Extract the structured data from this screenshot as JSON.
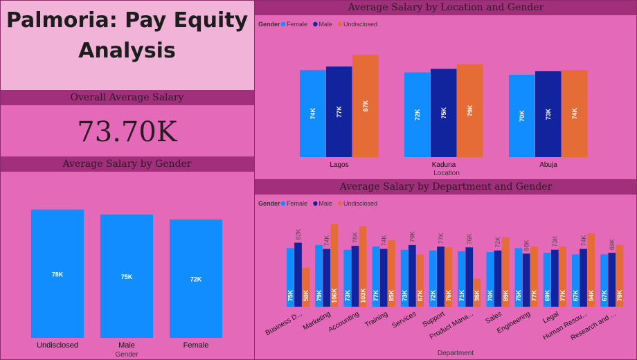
{
  "title": "Palmoria: Pay Equity Analysis",
  "kpi": {
    "header": "Overall Average Salary",
    "value": "73.70K"
  },
  "colors": {
    "female": "#118dff",
    "male": "#12239e",
    "undisclosed": "#e66c37",
    "header": "#a22f7c",
    "bg": "#e469b9"
  },
  "gender_chart": {
    "header": "Average Salary by Gender",
    "xlabel": "Gender",
    "chart_data": {
      "type": "bar",
      "categories": [
        "Undisclosed",
        "Male",
        "Female"
      ],
      "values": [
        78,
        75,
        72
      ],
      "labels": [
        "78K",
        "75K",
        "72K"
      ],
      "ylim": [
        0,
        80
      ]
    }
  },
  "location_chart": {
    "header": "Average Salary by Location and Gender",
    "legend_title": "Gender",
    "xlabel": "Location",
    "chart_data": {
      "type": "bar",
      "categories": [
        "Lagos",
        "Kaduna",
        "Abuja"
      ],
      "series": [
        {
          "name": "Female",
          "values": [
            74,
            72,
            70
          ],
          "labels": [
            "74K",
            "72K",
            "70K"
          ]
        },
        {
          "name": "Male",
          "values": [
            77,
            75,
            73
          ],
          "labels": [
            "77K",
            "75K",
            "73K"
          ]
        },
        {
          "name": "Undisclosed",
          "values": [
            87,
            79,
            74
          ],
          "labels": [
            "87K",
            "79K",
            "74K"
          ]
        }
      ],
      "ylim": [
        0,
        90
      ]
    }
  },
  "department_chart": {
    "header": "Average Salary by Department and Gender",
    "legend_title": "Gender",
    "xlabel": "Department",
    "chart_data": {
      "type": "bar",
      "categories": [
        "Business D...",
        "Marketing",
        "Accounting",
        "Training",
        "Services",
        "Support",
        "Product Mana...",
        "Sales",
        "Engineering",
        "Legal",
        "Human Resou...",
        "Research and ..."
      ],
      "series": [
        {
          "name": "Female",
          "values": [
            75,
            79,
            73,
            77,
            73,
            72,
            71,
            70,
            75,
            69,
            67,
            67
          ],
          "labels": [
            "75K",
            "79K",
            "73K",
            "77K",
            "73K",
            "72K",
            "71K",
            "70K",
            "75K",
            "69K",
            "67K",
            "67K"
          ]
        },
        {
          "name": "Male",
          "values": [
            82,
            74,
            78,
            74,
            79,
            77,
            76,
            72,
            68,
            73,
            74,
            69
          ],
          "labels": [
            "82K",
            "74K",
            "78K",
            "74K",
            "79K",
            "77K",
            "76K",
            "72K",
            "68K",
            "73K",
            "74K",
            "69K"
          ]
        },
        {
          "name": "Undisclosed",
          "values": [
            50,
            106,
            103,
            85,
            67,
            76,
            36,
            89,
            77,
            77,
            94,
            79
          ],
          "labels": [
            "50K",
            "106K",
            "103K",
            "85K",
            "67K",
            "76K",
            "36K",
            "89K",
            "77K",
            "77K",
            "94K",
            "79K"
          ]
        }
      ],
      "ylim": [
        0,
        110
      ]
    }
  }
}
